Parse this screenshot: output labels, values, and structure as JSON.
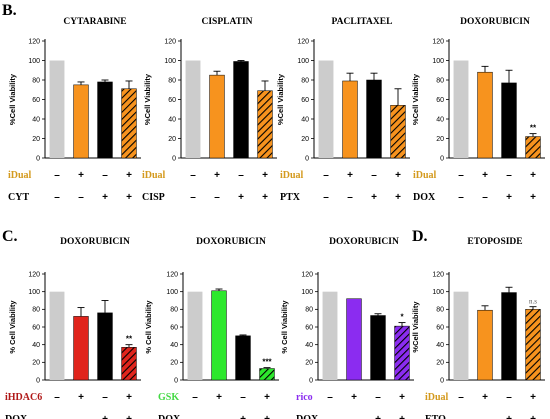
{
  "panel_letters": [
    "B.",
    "C.",
    "D."
  ],
  "colors": {
    "control": "#cccccc",
    "black": "#000000",
    "orange": "#f7931e",
    "red": "#e0241c",
    "green": "#2de82d",
    "purple": "#8b2cf0",
    "idual_text": "#d49a1e",
    "ihdac6_text": "#b01818",
    "gsk_text": "#44d944",
    "rico_text": "#8b2cf0"
  },
  "chart_data": [
    {
      "type": "bar",
      "title": "CYTARABINE",
      "ylabel": "%Cell Viability",
      "ylim": [
        0,
        120
      ],
      "yticks": [
        0,
        20,
        40,
        60,
        80,
        100,
        120
      ],
      "values": [
        100,
        75,
        78,
        71
      ],
      "errors": [
        0,
        3,
        2,
        8
      ],
      "fills": [
        "control",
        "orange",
        "black",
        "orange-hatch"
      ],
      "annotations": [
        "",
        "",
        "",
        ""
      ],
      "rows": [
        {
          "label": "iDual",
          "color": "idual_text",
          "signs": [
            "–",
            "+",
            "–",
            "+"
          ]
        },
        {
          "label": "CYT",
          "color": "black",
          "signs": [
            "–",
            "–",
            "+",
            "+"
          ]
        }
      ]
    },
    {
      "type": "bar",
      "title": "CISPLATIN",
      "ylabel": "%Cell Viability",
      "ylim": [
        0,
        120
      ],
      "yticks": [
        0,
        20,
        40,
        60,
        80,
        100,
        120
      ],
      "values": [
        100,
        85,
        99,
        69
      ],
      "errors": [
        0,
        4,
        1,
        10
      ],
      "fills": [
        "control",
        "orange",
        "black",
        "orange-hatch"
      ],
      "annotations": [
        "",
        "",
        "",
        ""
      ],
      "rows": [
        {
          "label": "iDual",
          "color": "idual_text",
          "signs": [
            "–",
            "+",
            "–",
            "+"
          ]
        },
        {
          "label": "CISP",
          "color": "black",
          "signs": [
            "–",
            "–",
            "+",
            "+"
          ]
        }
      ]
    },
    {
      "type": "bar",
      "title": "PACLITAXEL",
      "ylabel": "%Cell Viability",
      "ylim": [
        0,
        120
      ],
      "yticks": [
        0,
        20,
        40,
        60,
        80,
        100,
        120
      ],
      "values": [
        100,
        79,
        80,
        54
      ],
      "errors": [
        0,
        8,
        7,
        17
      ],
      "fills": [
        "control",
        "orange",
        "black",
        "orange-hatch"
      ],
      "annotations": [
        "",
        "",
        "",
        ""
      ],
      "rows": [
        {
          "label": "iDual",
          "color": "idual_text",
          "signs": [
            "–",
            "+",
            "–",
            "+"
          ]
        },
        {
          "label": "PTX",
          "color": "black",
          "signs": [
            "–",
            "–",
            "+",
            "+"
          ]
        }
      ]
    },
    {
      "type": "bar",
      "title": "DOXORUBICIN",
      "ylabel": "%Cell Viability",
      "ylim": [
        0,
        120
      ],
      "yticks": [
        0,
        20,
        40,
        60,
        80,
        100,
        120
      ],
      "values": [
        100,
        88,
        77,
        22
      ],
      "errors": [
        0,
        6,
        13,
        3
      ],
      "fills": [
        "control",
        "orange",
        "black",
        "orange-hatch"
      ],
      "annotations": [
        "",
        "",
        "",
        "**"
      ],
      "rows": [
        {
          "label": "iDual",
          "color": "idual_text",
          "signs": [
            "–",
            "+",
            "–",
            "+"
          ]
        },
        {
          "label": "DOX",
          "color": "black",
          "signs": [
            "–",
            "–",
            "+",
            "+"
          ]
        }
      ]
    },
    {
      "type": "bar",
      "title": "DOXORUBICIN",
      "ylabel": "% Cell Viability",
      "ylim": [
        0,
        120
      ],
      "yticks": [
        0,
        20,
        40,
        60,
        80,
        100,
        120
      ],
      "values": [
        100,
        72,
        76,
        37
      ],
      "errors": [
        0,
        10,
        14,
        3
      ],
      "fills": [
        "control",
        "red",
        "black",
        "red-hatch"
      ],
      "annotations": [
        "",
        "",
        "",
        "**"
      ],
      "rows": [
        {
          "label": "iHDAC6",
          "color": "ihdac6_text",
          "signs": [
            "–",
            "+",
            "–",
            "+"
          ]
        },
        {
          "label": "DOX",
          "color": "black",
          "signs": [
            "–",
            "–",
            "+",
            "+"
          ]
        }
      ]
    },
    {
      "type": "bar",
      "title": "DOXORUBICIN",
      "ylabel": "% Cell Viability",
      "ylim": [
        0,
        120
      ],
      "yticks": [
        0,
        20,
        40,
        60,
        80,
        100,
        120
      ],
      "values": [
        100,
        101,
        50,
        13
      ],
      "errors": [
        0,
        2,
        1,
        1
      ],
      "fills": [
        "control",
        "green",
        "black",
        "green-hatch"
      ],
      "annotations": [
        "",
        "",
        "",
        "***"
      ],
      "rows": [
        {
          "label": "GSK",
          "color": "gsk_text",
          "signs": [
            "–",
            "+",
            "–",
            "+"
          ]
        },
        {
          "label": "DOX",
          "color": "black",
          "signs": [
            "–",
            "–",
            "+",
            "+"
          ]
        }
      ]
    },
    {
      "type": "bar",
      "title": "DOXORUBICIN",
      "ylabel": "% Cell Viability",
      "ylim": [
        0,
        120
      ],
      "yticks": [
        0,
        20,
        40,
        60,
        80,
        100,
        120
      ],
      "values": [
        100,
        92,
        73,
        61
      ],
      "errors": [
        0,
        0,
        2,
        4
      ],
      "fills": [
        "control",
        "purple",
        "black",
        "purple-hatch"
      ],
      "annotations": [
        "",
        "",
        "",
        "*"
      ],
      "rows": [
        {
          "label": "rico",
          "color": "rico_text",
          "signs": [
            "–",
            "+",
            "–",
            "+"
          ]
        },
        {
          "label": "DOX",
          "color": "black",
          "signs": [
            "–",
            "–",
            "+",
            "+"
          ]
        }
      ]
    },
    {
      "type": "bar",
      "title": "ETOPOSIDE",
      "ylabel": "%Cell Viability",
      "ylim": [
        0,
        120
      ],
      "yticks": [
        0,
        20,
        40,
        60,
        80,
        100,
        120
      ],
      "values": [
        100,
        79,
        99,
        80
      ],
      "errors": [
        0,
        5,
        6,
        3
      ],
      "fills": [
        "control",
        "orange",
        "black",
        "orange-hatch"
      ],
      "annotations": [
        "",
        "",
        "",
        "n.s"
      ],
      "rows": [
        {
          "label": "iDual",
          "color": "idual_text",
          "signs": [
            "–",
            "+",
            "–",
            "+"
          ]
        },
        {
          "label": "ETO",
          "color": "black",
          "signs": [
            "–",
            "–",
            "+",
            "+"
          ]
        }
      ]
    }
  ]
}
